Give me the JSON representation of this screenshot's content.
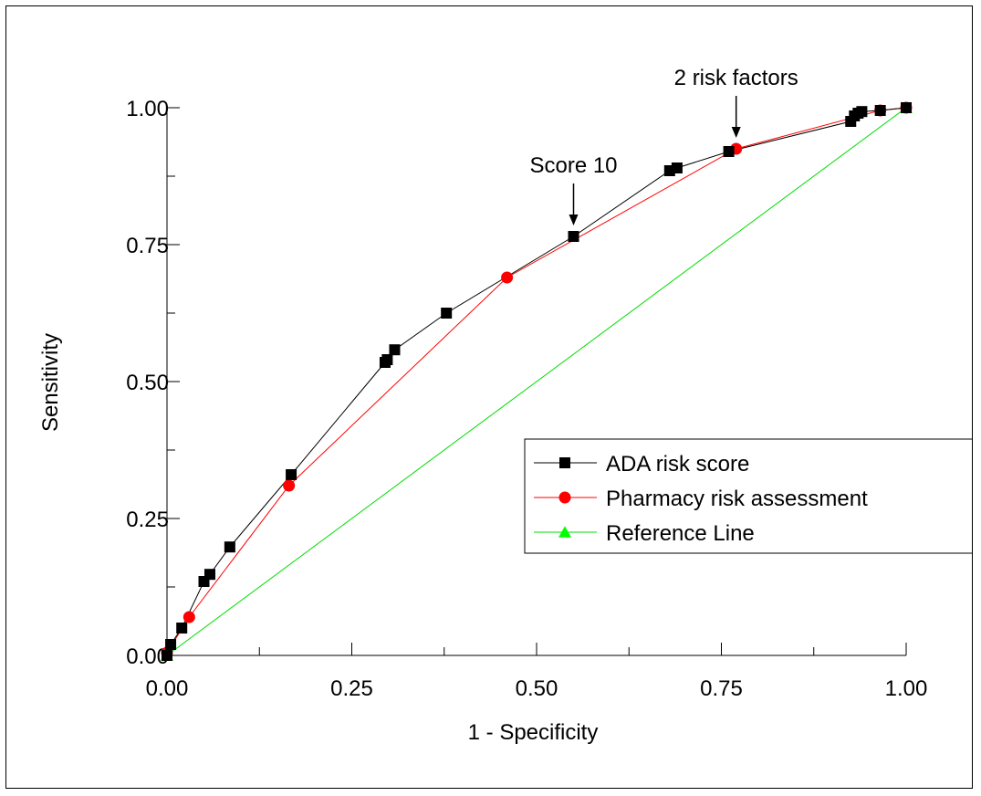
{
  "chart_data": {
    "type": "line",
    "xlabel": "1 - Specificity",
    "ylabel": "Sensitivity",
    "xlim": [
      0,
      1
    ],
    "ylim": [
      0,
      1
    ],
    "x_ticks": [
      "0.00",
      "0.25",
      "0.50",
      "0.75",
      "1.00"
    ],
    "y_ticks": [
      "0.00",
      "0.25",
      "0.50",
      "0.75",
      "1.00"
    ],
    "grid": false,
    "legend_position": "lower-right",
    "series": [
      {
        "name": "ADA risk score",
        "color": "#000000",
        "marker": "square",
        "points": [
          [
            0.0,
            0.0
          ],
          [
            0.005,
            0.02
          ],
          [
            0.02,
            0.05
          ],
          [
            0.05,
            0.135
          ],
          [
            0.058,
            0.148
          ],
          [
            0.085,
            0.198
          ],
          [
            0.168,
            0.33
          ],
          [
            0.295,
            0.535
          ],
          [
            0.298,
            0.54
          ],
          [
            0.308,
            0.558
          ],
          [
            0.378,
            0.625
          ],
          [
            0.55,
            0.765
          ],
          [
            0.68,
            0.885
          ],
          [
            0.69,
            0.89
          ],
          [
            0.76,
            0.92
          ],
          [
            0.925,
            0.975
          ],
          [
            0.93,
            0.985
          ],
          [
            0.935,
            0.99
          ],
          [
            0.94,
            0.993
          ],
          [
            0.965,
            0.995
          ],
          [
            1.0,
            1.0
          ]
        ]
      },
      {
        "name": "Pharmacy risk assessment",
        "color": "#ff0000",
        "marker": "circle",
        "points": [
          [
            0.0,
            0.005
          ],
          [
            0.03,
            0.07
          ],
          [
            0.165,
            0.31
          ],
          [
            0.46,
            0.69
          ],
          [
            0.77,
            0.925
          ],
          [
            0.965,
            0.995
          ],
          [
            1.0,
            1.0
          ]
        ]
      },
      {
        "name": "Reference Line",
        "color": "#00cc00",
        "marker": "triangle",
        "points": [
          [
            0.0,
            0.0
          ],
          [
            1.0,
            1.0
          ]
        ]
      }
    ],
    "annotations": [
      {
        "text": "Score 10",
        "x": 0.55,
        "y": 0.765
      },
      {
        "text": "2 risk factors",
        "x": 0.77,
        "y": 0.925
      }
    ]
  }
}
